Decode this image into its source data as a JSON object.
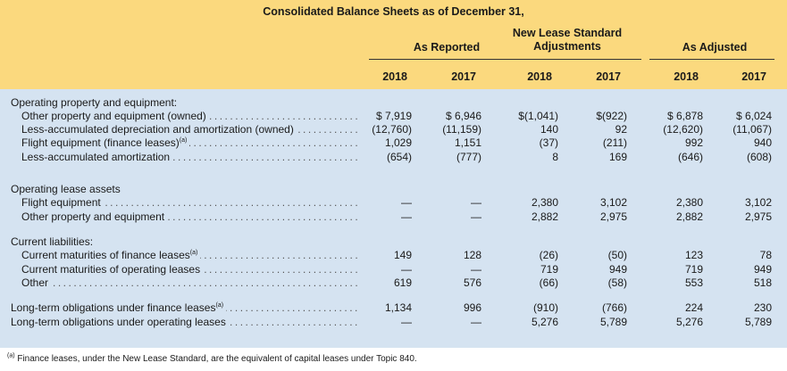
{
  "title": "Consolidated Balance Sheets as of December 31,",
  "groups": [
    {
      "label": "As Reported"
    },
    {
      "label": "New Lease Standard Adjustments"
    },
    {
      "label": "As Adjusted"
    }
  ],
  "years": [
    "2018",
    "2017",
    "2018",
    "2017",
    "2018",
    "2017"
  ],
  "rows": [
    {
      "label": "Operating property and equipment:",
      "indent": false,
      "dots": false,
      "values": [
        "",
        "",
        "",
        "",
        "",
        ""
      ]
    },
    {
      "label": "Other property and equipment (owned)",
      "indent": true,
      "dots": true,
      "values": [
        "$ 7,919",
        "$ 6,946",
        "$(1,041)",
        "$(922)",
        "$ 6,878",
        "$ 6,024"
      ]
    },
    {
      "label": "Less-accumulated depreciation and amortization (owned)",
      "indent": true,
      "dots": true,
      "values": [
        "(12,760)",
        "(11,159)",
        "140",
        "92",
        "(12,620)",
        "(11,067)"
      ]
    },
    {
      "label": "Flight equipment (finance leases)",
      "sup": "(a)",
      "indent": true,
      "dots": true,
      "values": [
        "1,029",
        "1,151",
        "(37)",
        "(211)",
        "992",
        "940"
      ]
    },
    {
      "label": "Less-accumulated amortization",
      "indent": true,
      "dots": true,
      "values": [
        "(654)",
        "(777)",
        "8",
        "169",
        "(646)",
        "(608)"
      ]
    },
    {
      "label": "Operating lease assets",
      "indent": false,
      "dots": false,
      "values": [
        "",
        "",
        "",
        "",
        "",
        ""
      ]
    },
    {
      "label": "Flight equipment",
      "indent": true,
      "dots": true,
      "values": [
        "—",
        "—",
        "2,380",
        "3,102",
        "2,380",
        "3,102"
      ]
    },
    {
      "label": "Other property and equipment",
      "indent": true,
      "dots": true,
      "values": [
        "—",
        "—",
        "2,882",
        "2,975",
        "2,882",
        "2,975"
      ]
    },
    {
      "label": "Current liabilities:",
      "indent": false,
      "dots": false,
      "values": [
        "",
        "",
        "",
        "",
        "",
        ""
      ]
    },
    {
      "label": "Current maturities of finance leases",
      "sup": "(a)",
      "indent": true,
      "dots": true,
      "values": [
        "149",
        "128",
        "(26)",
        "(50)",
        "123",
        "78"
      ]
    },
    {
      "label": "Current maturities of operating leases",
      "indent": true,
      "dots": true,
      "values": [
        "—",
        "—",
        "719",
        "949",
        "719",
        "949"
      ]
    },
    {
      "label": "Other",
      "indent": true,
      "dots": true,
      "values": [
        "619",
        "576",
        "(66)",
        "(58)",
        "553",
        "518"
      ]
    },
    {
      "label": "Long-term obligations under finance leases",
      "sup": "(a)",
      "indent": false,
      "dots": true,
      "values": [
        "1,134",
        "996",
        "(910)",
        "(766)",
        "224",
        "230"
      ]
    },
    {
      "label": "Long-term obligations under operating leases",
      "indent": false,
      "dots": true,
      "values": [
        "—",
        "—",
        "5,276",
        "5,789",
        "5,276",
        "5,789"
      ]
    }
  ],
  "footnote": {
    "marker": "(a)",
    "text": " Finance leases, under the New Lease Standard, are the equivalent of capital leases under Topic 840."
  }
}
